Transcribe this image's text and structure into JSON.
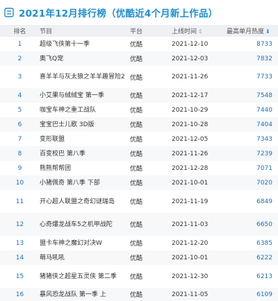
{
  "header": {
    "title": "2021年12月排行榜（优酷近4个月新上作品）"
  },
  "table": {
    "columns": {
      "rank": "排名",
      "title": "节目",
      "platform": "平台",
      "date": "上线时间",
      "heat": "最高单月热度"
    },
    "rows": [
      {
        "rank": "1",
        "title": "超级飞侠第十一季",
        "platform": "优酷",
        "date": "2021-12-10",
        "heat": "8733",
        "h": 21
      },
      {
        "rank": "2",
        "title": "奥飞Q宠",
        "platform": "优酷",
        "date": "2021-12-03",
        "heat": "7832",
        "h": 21
      },
      {
        "rank": "3",
        "title": "喜羊羊与灰太狼之羊羊趣冒险2",
        "platform": "优酷",
        "date": "2021-11-26",
        "heat": "7733",
        "h": 32
      },
      {
        "rank": "4",
        "title": "小艾果与绒绒宝 第一季",
        "platform": "优酷",
        "date": "2021-12-17",
        "heat": "7548",
        "h": 21
      },
      {
        "rank": "5",
        "title": "咖宝车神之重工战队",
        "platform": "优酷",
        "date": "2021-10-29",
        "heat": "7440",
        "h": 21
      },
      {
        "rank": "6",
        "title": "宝宝巴士儿歌 3D版",
        "platform": "优酷",
        "date": "2021-10-28",
        "heat": "7404",
        "h": 21
      },
      {
        "rank": "7",
        "title": "变形联盟",
        "platform": "优酷",
        "date": "2021-12-05",
        "heat": "7343",
        "h": 21
      },
      {
        "rank": "8",
        "title": "百变校巴 第八季",
        "platform": "优酷",
        "date": "2021-11-26",
        "heat": "7239",
        "h": 21
      },
      {
        "rank": "9",
        "title": "熊熊帮帮团",
        "platform": "优酷",
        "date": "2021-12-28",
        "heat": "7071",
        "h": 21
      },
      {
        "rank": "10",
        "title": "小猪佩奇 第八季 下部",
        "platform": "优酷",
        "date": "2021-10-01",
        "heat": "7020",
        "h": 21
      },
      {
        "rank": "11",
        "title": "开心超人联盟之奇幻谜瑞岛",
        "platform": "优酷",
        "date": "2021-11-19",
        "heat": "6849",
        "h": 33
      },
      {
        "rank": "12",
        "title": "心奇爆龙战车5之机甲战陀",
        "platform": "优酷",
        "date": "2021-11-03",
        "heat": "6650",
        "h": 33
      },
      {
        "rank": "13",
        "title": "盟卡车神之魔幻对决W",
        "platform": "优酷",
        "date": "2021-12-20",
        "heat": "6385",
        "h": 21
      },
      {
        "rank": "14",
        "title": "萌马吼吼",
        "platform": "优酷",
        "date": "2021-10-01",
        "heat": "6222",
        "h": 21
      },
      {
        "rank": "15",
        "title": "猪猪侠之超星五灵侠 第二季",
        "platform": "优酷",
        "date": "2021-12-30",
        "heat": "6213",
        "h": 33
      },
      {
        "rank": "16",
        "title": "暴风恐龙战队 第一季 上",
        "platform": "优酷",
        "date": "2021-11-05",
        "heat": "6109",
        "h": 19
      }
    ]
  }
}
